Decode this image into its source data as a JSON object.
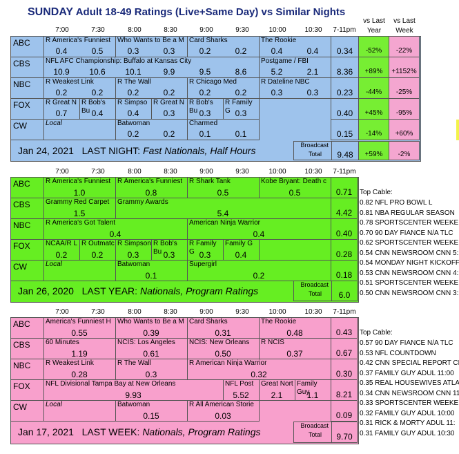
{
  "title": {
    "prefix": "SUNDAY",
    "rest": "Adult 18-49 Ratings (Live+Same Day) vs Similar Nights"
  },
  "col_headers": {
    "times": [
      "7:00",
      "7:30",
      "8:00",
      "8:30",
      "9:00",
      "9:30",
      "10:00",
      "10:30",
      "7-11pm"
    ],
    "vs_last_year": [
      "vs Last",
      "Year"
    ],
    "vs_last_week": [
      "vs Last",
      "Week"
    ]
  },
  "colors": {
    "blue": "#9ec3ec",
    "green": "#66ee22",
    "pink": "#f8a0cc",
    "green_cell": "#77ee33",
    "pink_cell": "#f4a6d0"
  },
  "panel1": {
    "rows": [
      {
        "net": "ABC",
        "shows": [
          {
            "t": "R America's Funniest"
          },
          {
            "t": "Who Wants to Be a M"
          },
          {
            "t": "Card Sharks"
          },
          {
            "t": ""
          },
          {
            "t": "The Rookie"
          }
        ],
        "ratings": [
          "0.4",
          "0.5",
          "0.3",
          "0.3",
          "0.2",
          "0.2",
          "0.4",
          "0.4"
        ],
        "total": "0.34",
        "vsly": "-52%",
        "vslw": "-22%"
      },
      {
        "net": "CBS",
        "shows": [
          {
            "t": "NFL AFC Championship: Buffalo at Kansas City"
          },
          {
            "t": ""
          },
          {
            "t": ""
          },
          {
            "t": ""
          },
          {
            "t": "Postgame  /   FBI"
          }
        ],
        "ratings": [
          "10.9",
          "10.6",
          "10.1",
          "9.9",
          "9.5",
          "8.6",
          "5.2",
          "2.1"
        ],
        "total": "8.36",
        "vsly": "+89%",
        "vslw": "+1152%"
      },
      {
        "net": "NBC",
        "shows": [
          {
            "t": "R Weakest Link"
          },
          {
            "t": "R The Wall"
          },
          {
            "t": "R Chicago Med"
          },
          {
            "t": ""
          },
          {
            "t": "R Dateline NBC"
          }
        ],
        "ratings": [
          "0.2",
          "0.2",
          "0.2",
          "0.2",
          "0.2",
          "0.2",
          "0.3",
          "0.3"
        ],
        "total": "0.23",
        "vsly": "-44%",
        "vslw": "-25%"
      },
      {
        "net": "FOX",
        "shows": [
          {
            "t": "R Great N"
          },
          {
            "t": "R Bob's Bu"
          },
          {
            "t": "R Simpso"
          },
          {
            "t": "R Great N"
          },
          {
            "t": "R Bob's Bu"
          },
          {
            "t": "R Family G"
          }
        ],
        "ratings": [
          "0.7",
          "0.4",
          "0.4",
          "0.3",
          "0.3",
          "0.3",
          "",
          ""
        ],
        "total": "0.40",
        "vsly": "+45%",
        "vslw": "-95%"
      },
      {
        "net": "CW",
        "shows": [
          {
            "t": "Local"
          },
          {
            "t": "Batwoman"
          },
          {
            "t": "Charmed"
          }
        ],
        "ratings": [
          "",
          "",
          "0.2",
          "0.2",
          "0.1",
          "0.1",
          "",
          ""
        ],
        "total": "0.15",
        "vsly": "-14%",
        "vslw": "+60%"
      }
    ],
    "footer_date": "Jan 24, 2021",
    "footer_label": "LAST NIGHT:",
    "footer_desc": "Fast Nationals, Half Hours",
    "broadcast": "Broadcast",
    "total_label": "Total",
    "total": "9.48",
    "vsly": "+59%",
    "vslw": "-2%"
  },
  "panel2": {
    "footer_date": "Jan 26, 2020",
    "footer_label": "LAST YEAR:",
    "footer_desc": "Nationals, Program Ratings",
    "broadcast": "Broadcast",
    "total_label": "Total",
    "total": "6.0",
    "rows": [
      {
        "net": "ABC",
        "s1": "R America's Funniest",
        "s2": "R America's Funniest",
        "s3": "R Shark Tank",
        "s4": "Kobe Bryant: Death c",
        "r1": "1.0",
        "r2": "0.8",
        "r3": "0.5",
        "r4": "0.5",
        "total": "0.71"
      },
      {
        "net": "CBS",
        "s1": "Grammy Red Carpet",
        "s2": "Grammy Awards",
        "r1": "1.5",
        "r2": "5.4",
        "total": "4.42"
      },
      {
        "net": "NBC",
        "s1": "R America's Got Talent",
        "s2": "American Ninja Warrior",
        "r1": "0.4",
        "r2": "0.4",
        "total": "0.40"
      },
      {
        "net": "FOX",
        "s1": "NCAA/R L",
        "s2": "R Outmatc",
        "s3": "R Simpson",
        "s4": "R Bob's Bu",
        "s5": "R Family G",
        "s6": "Family G",
        "r1": "0.2",
        "r2": "0.2",
        "r3": "0.3",
        "r4": "0.3",
        "r5": "0.3",
        "r6": "0.4",
        "total": "0.28"
      },
      {
        "net": "CW",
        "s1": "Local",
        "s2": "Batwoman",
        "s3": "Supergirl",
        "r2": "0.1",
        "r3": "0.2",
        "total": "0.18"
      }
    ]
  },
  "panel3": {
    "footer_date": "Jan 17, 2021",
    "footer_label": "LAST WEEK:",
    "footer_desc": "Nationals, Program Ratings",
    "broadcast": "Broadcast",
    "total_label": "Total",
    "total": "9.70",
    "rows": [
      {
        "net": "ABC",
        "s1": "America's Funniest H",
        "s2": "Who Wants to Be a M",
        "s3": "Card Sharks",
        "s4": "The Rookie",
        "r1": "0.55",
        "r2": "0.39",
        "r3": "0.31",
        "r4": "0.48",
        "total": "0.43"
      },
      {
        "net": "CBS",
        "s1": "60 Minutes",
        "s2": "NCIS: Los Angeles",
        "s3": "NCIS: New Orleans",
        "s4": "R NCIS",
        "r1": "1.19",
        "r2": "0.61",
        "r3": "0.50",
        "r4": "0.37",
        "total": "0.67"
      },
      {
        "net": "NBC",
        "s1": "R Weakest Link",
        "s2": "R The Wall",
        "s3": "R American Ninja Warrior",
        "r1": "0.28",
        "r2": "0.3",
        "r3": "0.32",
        "total": "0.30"
      },
      {
        "net": "FOX",
        "s1": "NFL Divisional Tampa Bay at New Orleans",
        "s2": "NFL Post",
        "s3": "Great Nort",
        "s4": "Family Guy",
        "r1": "9.93",
        "r2": "5.52",
        "r3": "2.1",
        "r4": "1.1",
        "total": "8.21"
      },
      {
        "net": "CW",
        "s1": "Local",
        "s2": "Batwoman",
        "s3": "R All American Storie",
        "r2": "0.15",
        "r3": "0.03",
        "total": "0.09"
      }
    ]
  },
  "top_cable_1": {
    "header": "Top Cable:",
    "items": [
      "0.82 NFL PRO BOWL          L",
      "0.81 NBA REGULAR SEASON",
      "0.78 SPORTSCENTER WEEKEN",
      "0.70 90 DAY FIANCE N/A TLC",
      "0.62 SPORTSCENTER WEEKEN",
      "0.54 CNN NEWSROOM CNN 5:",
      "0.54 MONDAY NIGHT KICKOFF",
      "0.53 CNN NEWSROOM CNN 4:",
      "0.51 SPORTSCENTER WEEKEN",
      "0.50 CNN NEWSROOM CNN 3:"
    ]
  },
  "top_cable_2": {
    "header": "Top Cable:",
    "items": [
      "0.57 90 DAY FIANCE N/A TLC",
      "0.53 NFL COUNTDOWN",
      "0.42 CNN SPECIAL REPORT CN",
      "0.37 FAMILY GUY ADUL 11:00",
      "0.35 REAL HOUSEWIVES ATLA",
      "0.34 CNN NEWSROOM CNN 11:",
      "0.33 SPORTSCENTER WEEKEN",
      "0.32 FAMILY GUY ADUL 10:00",
      "0.31 RICK & MORTY ADUL 11:",
      "0.31 FAMILY GUY ADUL 10:30"
    ]
  }
}
